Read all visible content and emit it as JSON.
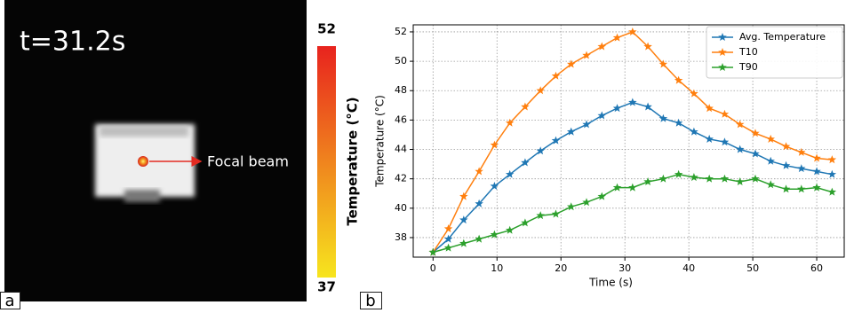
{
  "panel_labels": [
    "a",
    "b"
  ],
  "image": {
    "time_label": "t=31.2s",
    "annotation": "Focal beam"
  },
  "chart_data": [
    {
      "type": "colorbar",
      "title": "Temperature (°C)",
      "ylim": [
        37,
        52
      ],
      "yticks": [
        37,
        52
      ],
      "colors": [
        "#f7e51e",
        "#e8231e"
      ]
    },
    {
      "type": "line",
      "xlabel": "Time (s)",
      "ylabel": "Temperature (°C)",
      "x": [
        0,
        2.4,
        4.8,
        7.2,
        9.6,
        12,
        14.4,
        16.8,
        19.2,
        21.6,
        24,
        26.4,
        28.8,
        31.2,
        33.6,
        36,
        38.4,
        40.8,
        43.2,
        45.6,
        48,
        50.4,
        52.8,
        55.2,
        57.6,
        60,
        62.4
      ],
      "series": [
        {
          "name": "Avg. Temperature",
          "color": "#1f77b4",
          "values": [
            37,
            37.9,
            39.2,
            40.3,
            41.5,
            42.3,
            43.1,
            43.9,
            44.6,
            45.2,
            45.7,
            46.3,
            46.8,
            47.2,
            46.9,
            46.1,
            45.8,
            45.2,
            44.7,
            44.5,
            44.0,
            43.7,
            43.2,
            42.9,
            42.7,
            42.5,
            42.3
          ]
        },
        {
          "name": "T10",
          "color": "#ff7f0e",
          "values": [
            37,
            38.6,
            40.8,
            42.5,
            44.3,
            45.8,
            46.9,
            48.0,
            49.0,
            49.8,
            50.4,
            51.0,
            51.6,
            52.0,
            51.0,
            49.8,
            48.7,
            47.8,
            46.8,
            46.4,
            45.7,
            45.1,
            44.7,
            44.2,
            43.8,
            43.4,
            43.3
          ]
        },
        {
          "name": "T90",
          "color": "#2ca02c",
          "values": [
            37,
            37.3,
            37.6,
            37.9,
            38.2,
            38.5,
            39.0,
            39.5,
            39.6,
            40.1,
            40.4,
            40.8,
            41.4,
            41.4,
            41.8,
            42.0,
            42.3,
            42.1,
            42.0,
            42.0,
            41.8,
            42.0,
            41.6,
            41.3,
            41.3,
            41.4,
            41.1
          ]
        }
      ],
      "xlim": [
        -3.1,
        64.3
      ],
      "ylim": [
        36.67,
        52.48
      ],
      "xticks": [
        0,
        10,
        20,
        30,
        40,
        50,
        60
      ],
      "yticks": [
        38,
        40,
        42,
        44,
        46,
        48,
        50,
        52
      ],
      "grid": true,
      "legend": "upper right"
    }
  ]
}
